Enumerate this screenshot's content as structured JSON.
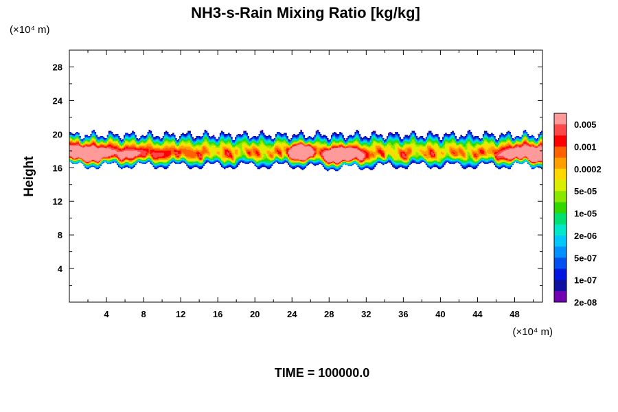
{
  "chart_data": {
    "type": "heatmap",
    "title": "NH3-s-Rain Mixing Ratio [kg/kg]",
    "xlabel": "",
    "ylabel": "Height",
    "x_unit": "(×10⁴ m)",
    "y_unit": "(×10⁴ m)",
    "xlim": [
      0,
      51
    ],
    "ylim": [
      0,
      30
    ],
    "x_ticks": [
      "4",
      "8",
      "12",
      "16",
      "20",
      "24",
      "28",
      "32",
      "36",
      "40",
      "44",
      "48"
    ],
    "y_ticks": [
      "4",
      "8",
      "12",
      "16",
      "20",
      "24",
      "28"
    ],
    "colorbar": {
      "labels": [
        "0.005",
        "0.001",
        "0.0002",
        "5e-05",
        "1e-05",
        "2e-06",
        "5e-07",
        "1e-07",
        "2e-08"
      ],
      "colors": [
        "#ff9a9a",
        "#ff4848",
        "#ff0000",
        "#ff6000",
        "#ffa000",
        "#ffd800",
        "#d8f000",
        "#88e800",
        "#30d800",
        "#00e070",
        "#00e8c8",
        "#00c8ff",
        "#0090ff",
        "#0050f0",
        "#0018e0",
        "#1010a0",
        "#7000b0"
      ]
    },
    "layer": {
      "bottom_height": 16,
      "top_height": 20.4,
      "max_category": "0.005",
      "hotspots_x": [
        2,
        6,
        25,
        29.5,
        49.5
      ]
    },
    "footer": "TIME = 100000.0"
  }
}
